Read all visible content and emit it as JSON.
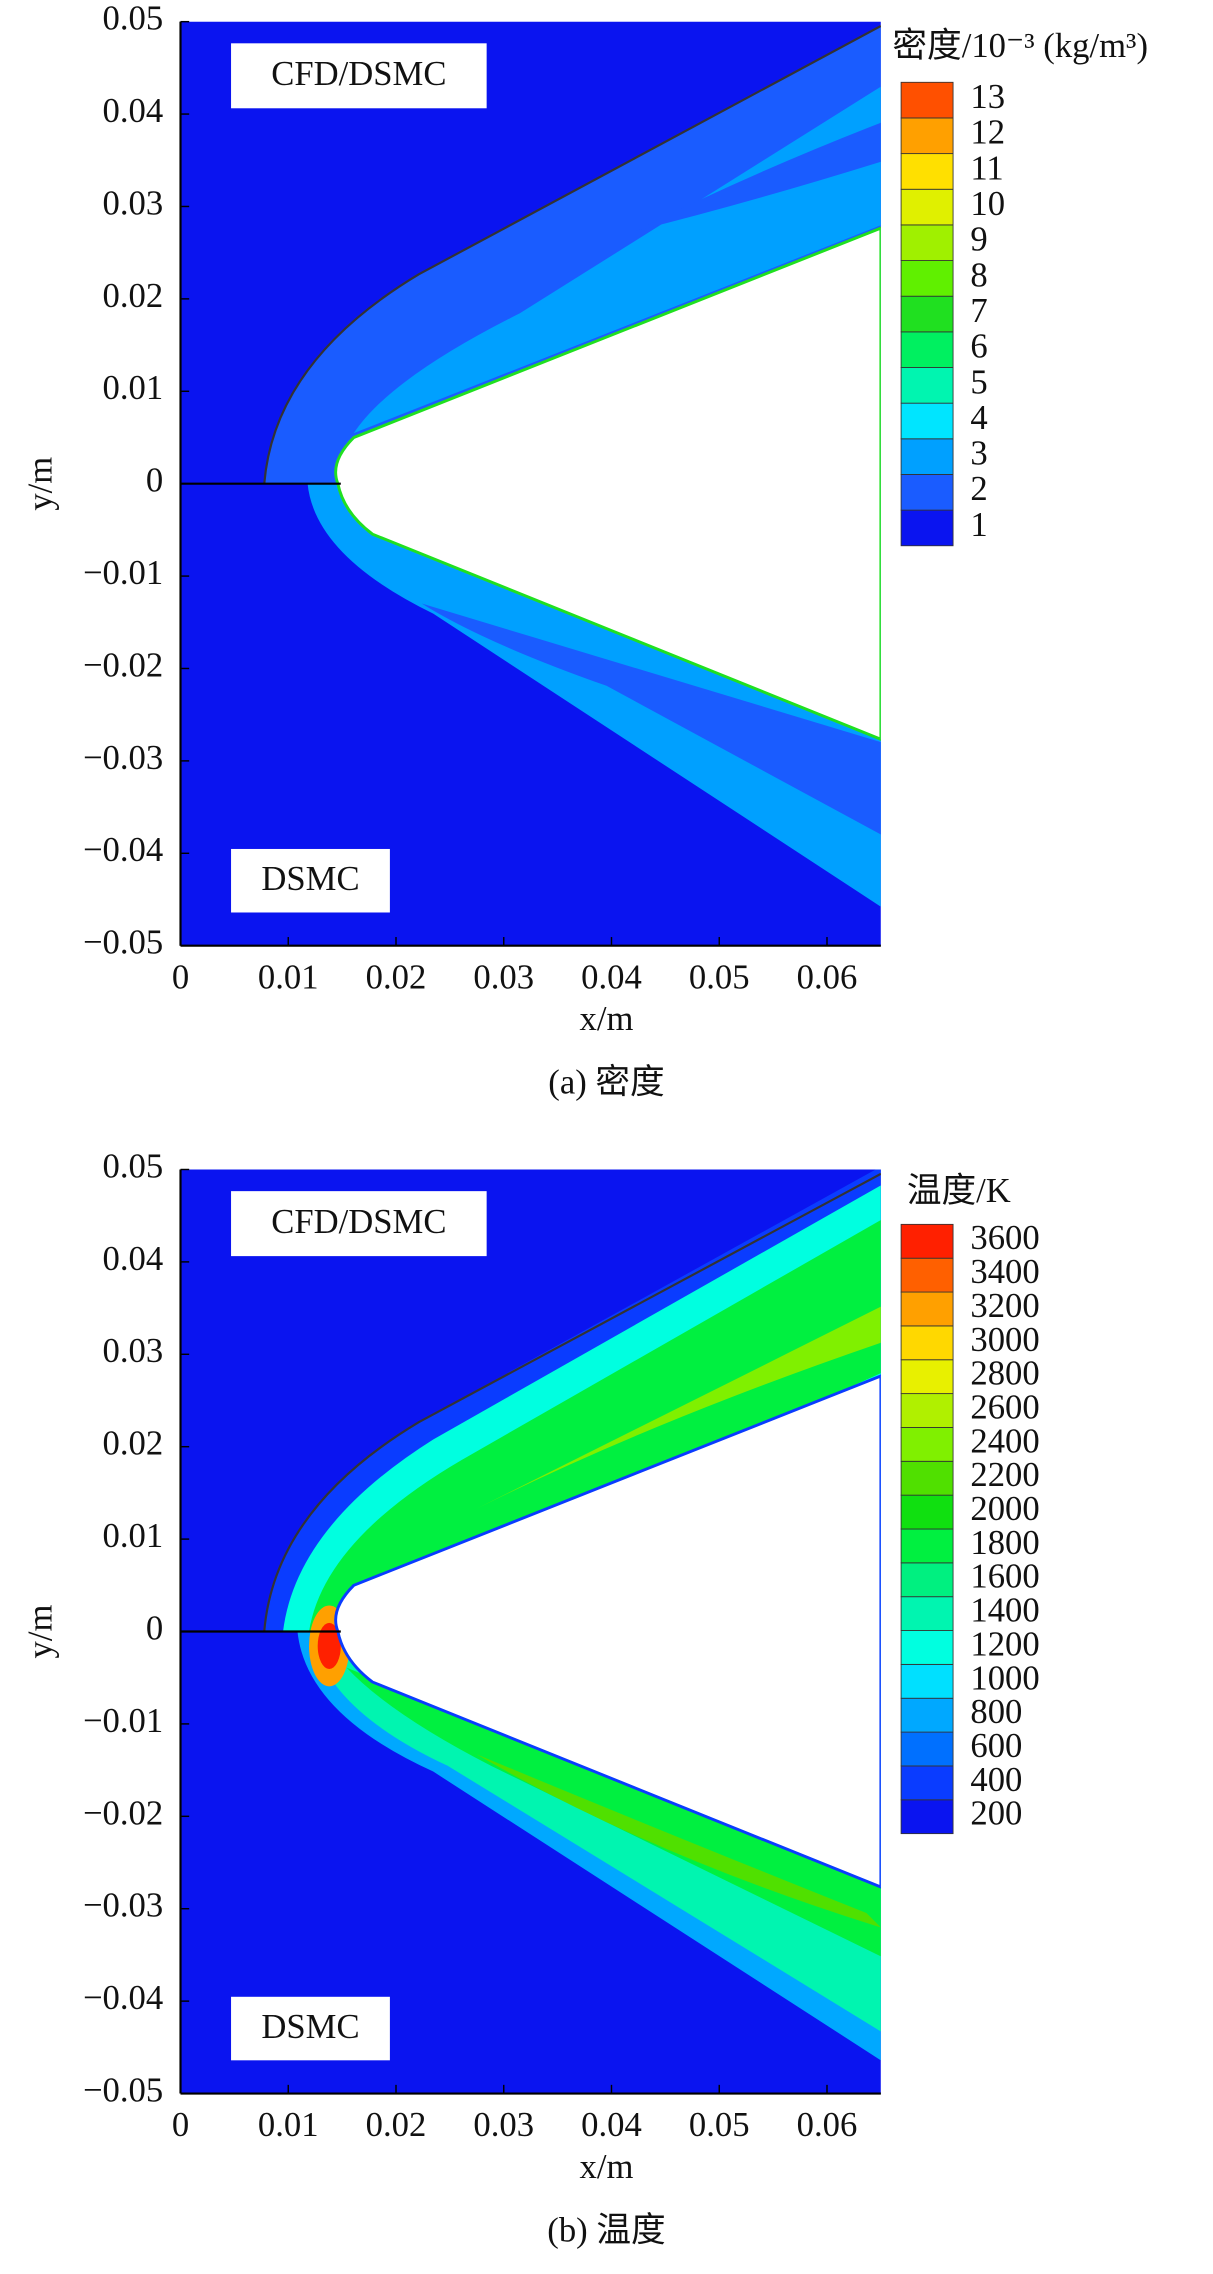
{
  "chart_data": [
    {
      "type": "contour",
      "title": "密度/10⁻³ (kg/m³)",
      "caption": "(a) 密度",
      "annotations": [
        "CFD/DSMC",
        "DSMC"
      ],
      "xlabel": "x/m",
      "ylabel": "y/m",
      "xlim": [
        0,
        0.065
      ],
      "ylim": [
        -0.05,
        0.05
      ],
      "xticks": [
        0,
        0.01,
        0.02,
        0.03,
        0.04,
        0.05,
        0.06
      ],
      "yticks": [
        {
          "value": -0.05,
          "label": "−0.05"
        },
        {
          "value": -0.04,
          "label": "−0.04"
        },
        {
          "value": -0.03,
          "label": "−0.03"
        },
        {
          "value": -0.02,
          "label": "−0.02"
        },
        {
          "value": -0.01,
          "label": "−0.01"
        },
        0,
        0.01,
        0.02,
        0.03,
        0.04,
        0.05
      ],
      "levels": [
        1,
        2,
        3,
        4,
        5,
        6,
        7,
        8,
        9,
        10,
        11,
        12,
        13
      ],
      "colors": [
        "#0a14f0",
        "#1a5cff",
        "#00a0ff",
        "#00e5ff",
        "#00f5b0",
        "#00f060",
        "#20e020",
        "#60f000",
        "#a0f000",
        "#e0f000",
        "#ffe000",
        "#ffa000",
        "#ff5000"
      ]
    },
    {
      "type": "contour",
      "title": "温度/K",
      "caption": "(b) 温度",
      "annotations": [
        "CFD/DSMC",
        "DSMC"
      ],
      "xlabel": "x/m",
      "ylabel": "y/m",
      "xlim": [
        0,
        0.065
      ],
      "ylim": [
        -0.05,
        0.05
      ],
      "xticks": [
        0,
        0.01,
        0.02,
        0.03,
        0.04,
        0.05,
        0.06
      ],
      "yticks": [
        {
          "value": -0.05,
          "label": "−0.05"
        },
        {
          "value": -0.04,
          "label": "−0.04"
        },
        {
          "value": -0.03,
          "label": "−0.03"
        },
        {
          "value": -0.02,
          "label": "−0.02"
        },
        {
          "value": -0.01,
          "label": "−0.01"
        },
        0,
        0.01,
        0.02,
        0.03,
        0.04,
        0.05
      ],
      "levels": [
        200,
        400,
        600,
        800,
        1000,
        1200,
        1400,
        1600,
        1800,
        2000,
        2200,
        2400,
        2600,
        2800,
        3000,
        3200,
        3400,
        3600
      ],
      "colors": [
        "#0a14f0",
        "#0a3cff",
        "#0070ff",
        "#00a8ff",
        "#00e0ff",
        "#00ffe0",
        "#00f5b0",
        "#00f080",
        "#00f040",
        "#10e010",
        "#50e000",
        "#80f000",
        "#b0f000",
        "#e8f000",
        "#ffd800",
        "#ffa000",
        "#ff6000",
        "#ff2000"
      ]
    }
  ]
}
